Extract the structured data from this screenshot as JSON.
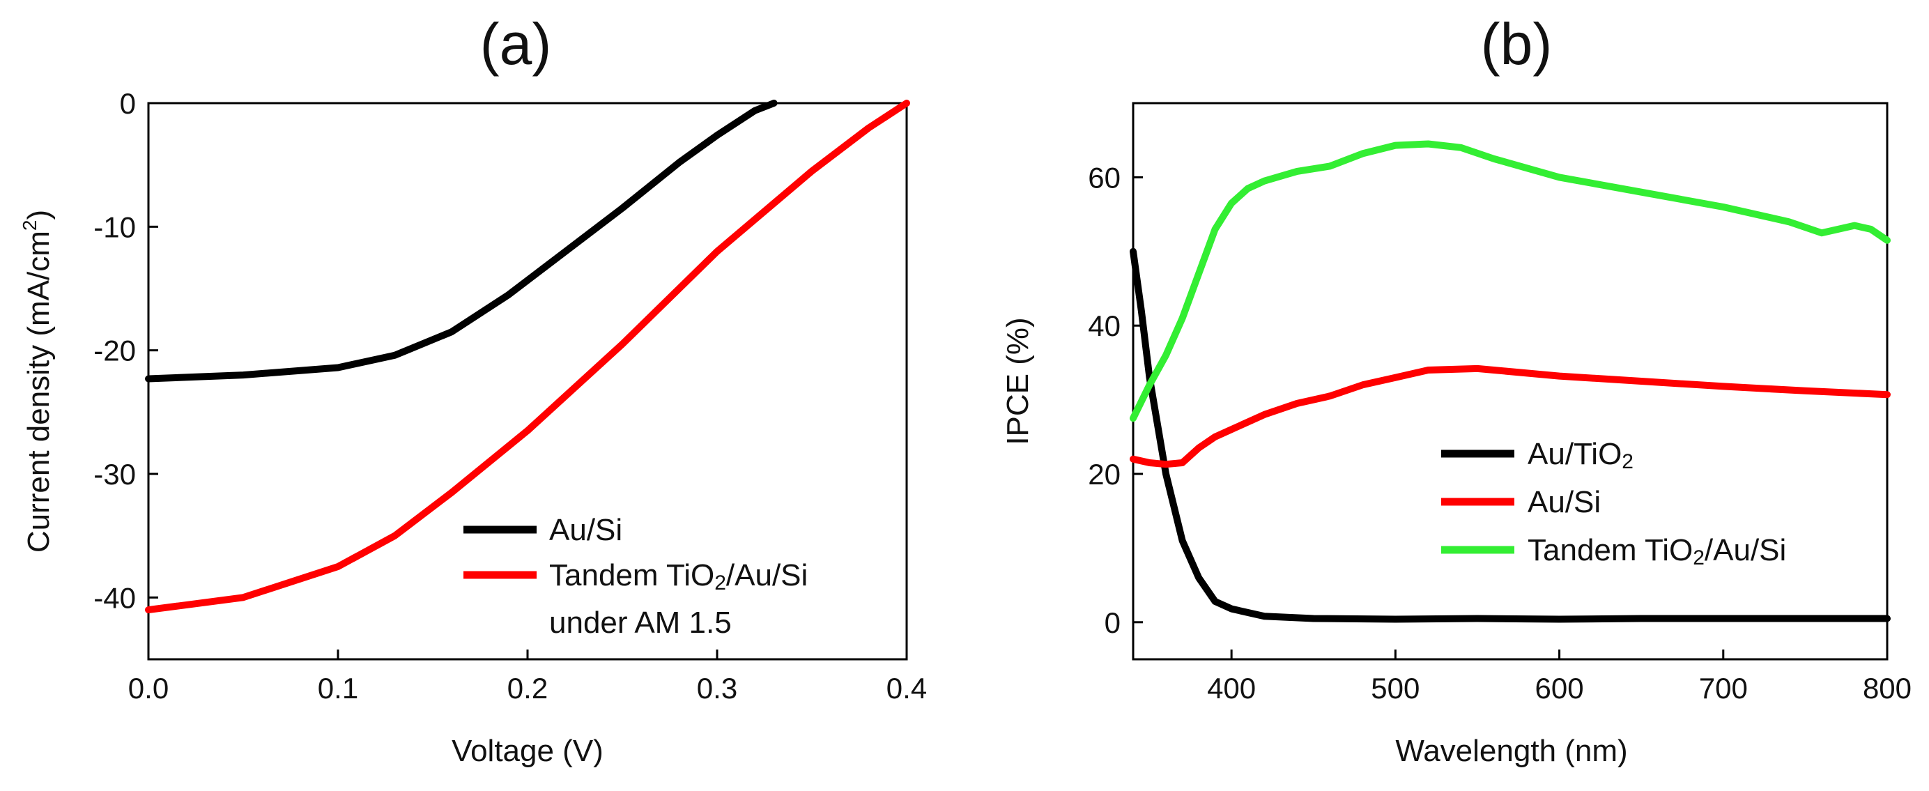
{
  "chart_data": [
    {
      "panel": "(a)",
      "type": "line",
      "title": "",
      "xlabel": "Voltage (V)",
      "ylabel": "Current density (mA/cm2)",
      "ylabel_main": "Current density (mA/cm",
      "ylabel_sup": "2",
      "ylabel_tail": ")",
      "xlim": [
        0.0,
        0.4
      ],
      "ylim": [
        -45,
        0
      ],
      "xticks": [
        "0.0",
        "0.1",
        "0.2",
        "0.3",
        "0.4"
      ],
      "xtick_values": [
        0.0,
        0.1,
        0.2,
        0.3,
        0.4
      ],
      "yticks": [
        "0",
        "-10",
        "-20",
        "-30",
        "-40"
      ],
      "ytick_values": [
        0,
        -10,
        -20,
        -30,
        -40
      ],
      "grid": false,
      "legend_position": "bottom-right",
      "legend_extra": "under AM 1.5",
      "series": [
        {
          "name": "Au/Si",
          "name_main": "Au/Si",
          "color": "#000000",
          "x": [
            0.0,
            0.05,
            0.1,
            0.13,
            0.16,
            0.19,
            0.22,
            0.25,
            0.28,
            0.3,
            0.32,
            0.33
          ],
          "y": [
            -22.3,
            -22.0,
            -21.4,
            -20.4,
            -18.5,
            -15.5,
            -12.0,
            -8.5,
            -4.8,
            -2.6,
            -0.6,
            0.0
          ]
        },
        {
          "name": "Tandem TiO2/Au/Si",
          "name_main": "Tandem TiO",
          "name_sub": "2",
          "name_tail": "/Au/Si",
          "color": "#ff0000",
          "x": [
            0.0,
            0.05,
            0.1,
            0.13,
            0.16,
            0.2,
            0.25,
            0.3,
            0.35,
            0.38,
            0.4
          ],
          "y": [
            -41.0,
            -40.0,
            -37.5,
            -35.0,
            -31.5,
            -26.5,
            -19.5,
            -12.0,
            -5.5,
            -2.0,
            0.0
          ]
        }
      ]
    },
    {
      "panel": "(b)",
      "type": "line",
      "title": "",
      "xlabel": "Wavelength (nm)",
      "ylabel": "IPCE (%)",
      "xlim": [
        340,
        800
      ],
      "ylim": [
        -5,
        70
      ],
      "xticks": [
        "400",
        "500",
        "600",
        "700",
        "800"
      ],
      "xtick_values": [
        400,
        500,
        600,
        700,
        800
      ],
      "yticks": [
        "0",
        "20",
        "40",
        "60"
      ],
      "ytick_values": [
        0,
        20,
        40,
        60
      ],
      "grid": false,
      "legend_position": "center-right",
      "series": [
        {
          "name": "Au/TiO2",
          "name_main": "Au/TiO",
          "name_sub": "2",
          "name_tail": "",
          "color": "#000000",
          "x": [
            340,
            345,
            350,
            360,
            370,
            380,
            390,
            400,
            420,
            450,
            500,
            550,
            600,
            650,
            700,
            750,
            800
          ],
          "y": [
            50,
            42,
            33,
            20,
            11,
            6,
            2.8,
            1.8,
            0.8,
            0.5,
            0.4,
            0.5,
            0.4,
            0.5,
            0.5,
            0.5,
            0.5
          ]
        },
        {
          "name": "Au/Si",
          "name_main": "Au/Si",
          "color": "#ff0000",
          "x": [
            340,
            350,
            360,
            370,
            380,
            390,
            400,
            420,
            440,
            460,
            480,
            500,
            520,
            550,
            600,
            650,
            700,
            750,
            800
          ],
          "y": [
            22,
            21.5,
            21.3,
            21.5,
            23.5,
            25,
            26,
            28,
            29.5,
            30.5,
            32,
            33,
            34,
            34.2,
            33.2,
            32.5,
            31.8,
            31.2,
            30.7
          ]
        },
        {
          "name": "Tandem TiO2/Au/Si",
          "name_main": "Tandem TiO",
          "name_sub": "2",
          "name_tail": "/Au/Si",
          "color": "#33ee33",
          "x": [
            340,
            350,
            360,
            370,
            380,
            390,
            400,
            410,
            420,
            440,
            460,
            480,
            500,
            520,
            540,
            560,
            600,
            650,
            700,
            740,
            760,
            780,
            790,
            800
          ],
          "y": [
            27.5,
            32,
            36,
            41,
            47,
            53,
            56.5,
            58.5,
            59.5,
            60.8,
            61.5,
            63.2,
            64.3,
            64.5,
            64,
            62.5,
            60,
            58,
            56,
            54,
            52.5,
            53.5,
            53,
            51.5
          ]
        }
      ]
    }
  ]
}
